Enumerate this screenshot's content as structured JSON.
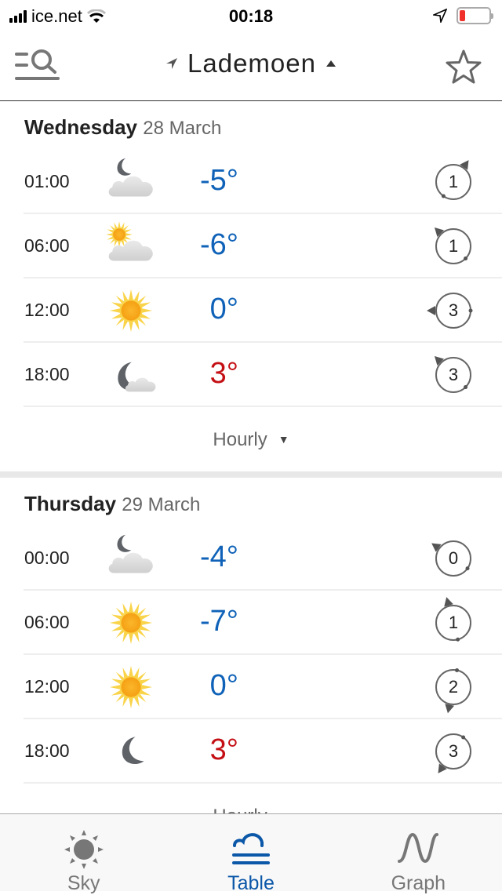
{
  "status_bar": {
    "carrier": "ice.net",
    "time": "00:18",
    "battery_level": 0.2
  },
  "header": {
    "location": "Lademoen",
    "menu_icon": "menu-search-icon",
    "favorite_icon": "star-outline-icon"
  },
  "colors": {
    "cold": "#0f62b8",
    "warm": "#c40f14",
    "accent": "#0b57a8"
  },
  "days": [
    {
      "day": "Wednesday",
      "date": "28 March",
      "more_label": "Hourly",
      "rows": [
        {
          "time": "01:00",
          "icon": "moon-cloud",
          "temp": "-5°",
          "temp_class": "cold",
          "wind_speed": "1",
          "wind_arrow_deg": 35
        },
        {
          "time": "06:00",
          "icon": "sun-cloud",
          "temp": "-6°",
          "temp_class": "cold",
          "wind_speed": "1",
          "wind_arrow_deg": 315
        },
        {
          "time": "12:00",
          "icon": "sun",
          "temp": "0°",
          "temp_class": "cold",
          "wind_speed": "3",
          "wind_arrow_deg": 270
        },
        {
          "time": "18:00",
          "icon": "moon-small-cloud",
          "temp": "3°",
          "temp_class": "warm",
          "wind_speed": "3",
          "wind_arrow_deg": 315
        }
      ]
    },
    {
      "day": "Thursday",
      "date": "29 March",
      "more_label": "Hourly",
      "rows": [
        {
          "time": "00:00",
          "icon": "moon-cloud",
          "temp": "-4°",
          "temp_class": "cold",
          "wind_speed": "0",
          "wind_arrow_deg": 305
        },
        {
          "time": "06:00",
          "icon": "sun",
          "temp": "-7°",
          "temp_class": "cold",
          "wind_speed": "1",
          "wind_arrow_deg": 345
        },
        {
          "time": "12:00",
          "icon": "sun",
          "temp": "0°",
          "temp_class": "cold",
          "wind_speed": "2",
          "wind_arrow_deg": 192
        },
        {
          "time": "18:00",
          "icon": "moon",
          "temp": "3°",
          "temp_class": "warm",
          "wind_speed": "3",
          "wind_arrow_deg": 215
        }
      ]
    }
  ],
  "tabs": [
    {
      "label": "Sky",
      "icon": "sun-icon",
      "active": false
    },
    {
      "label": "Table",
      "icon": "cloud-lines-icon",
      "active": true
    },
    {
      "label": "Graph",
      "icon": "wave-icon",
      "active": false
    }
  ]
}
